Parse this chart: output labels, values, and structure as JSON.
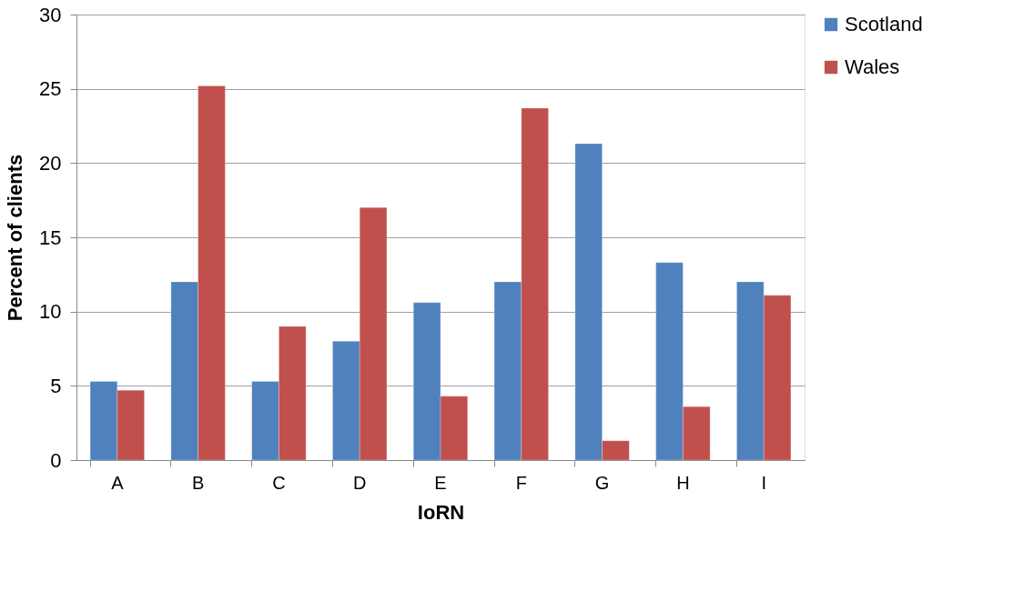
{
  "chart_data": {
    "type": "bar",
    "xlabel": "IoRN",
    "ylabel": "Percent of clients",
    "categories": [
      "A",
      "B",
      "C",
      "D",
      "E",
      "F",
      "G",
      "H",
      "I"
    ],
    "series": [
      {
        "name": "Scotland",
        "color": "#4f81bd",
        "values": [
          5.3,
          12.0,
          5.3,
          8.0,
          10.6,
          12.0,
          21.3,
          13.3,
          12.0
        ]
      },
      {
        "name": "Wales",
        "color": "#c0504d",
        "values": [
          4.7,
          25.2,
          9.0,
          17.0,
          4.3,
          23.7,
          1.3,
          3.6,
          11.1
        ]
      }
    ],
    "ylim": [
      0,
      30
    ],
    "yticks": [
      0,
      5,
      10,
      15,
      20,
      25,
      30
    ],
    "grid": "y",
    "legend": "right"
  }
}
